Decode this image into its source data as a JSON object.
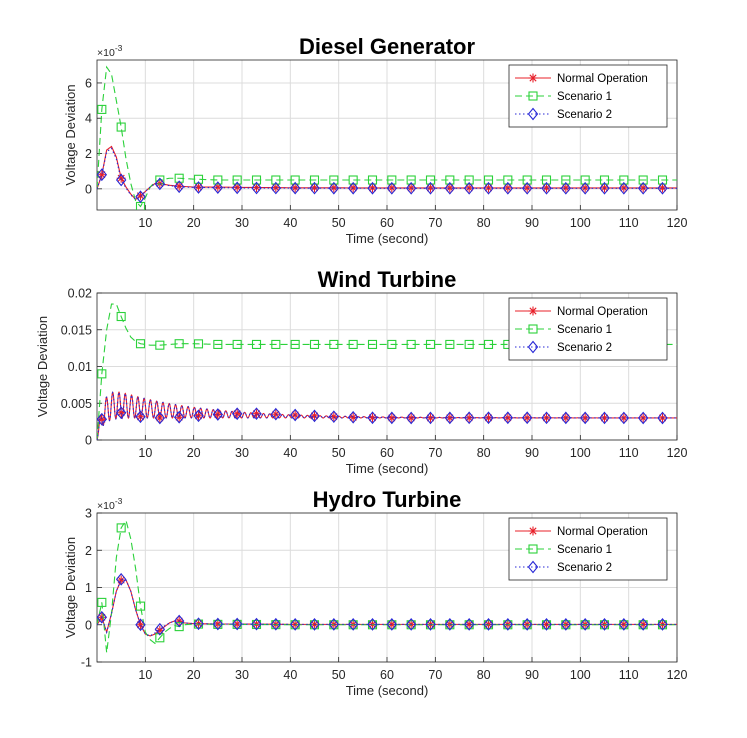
{
  "figure": {
    "background": "#ffffff"
  },
  "chart_data": [
    {
      "type": "line",
      "title": "Diesel Generator",
      "xlabel": "Time (second)",
      "ylabel": "Voltage Deviation",
      "xlim": [
        0,
        120
      ],
      "ylim": [
        -1.2,
        7.3
      ],
      "exponent_label": "×10^-3",
      "exponent_base": "×10",
      "exponent_power": "-3",
      "xticks": [
        10,
        20,
        30,
        40,
        50,
        60,
        70,
        80,
        90,
        100,
        110,
        120
      ],
      "yticks": [
        0,
        2,
        4,
        6
      ],
      "grid": true,
      "legend_position": "top-right",
      "series": [
        {
          "name": "Normal Operation",
          "color": "#e8202a",
          "dash": "solid",
          "marker": "asterisk",
          "x": [
            0,
            1,
            2,
            3,
            4,
            5,
            6,
            7,
            8,
            9,
            10,
            11,
            12,
            13,
            15,
            17,
            20,
            25,
            30,
            40,
            60,
            120
          ],
          "y": [
            0,
            0.8,
            2.2,
            2.4,
            1.8,
            0.6,
            0.1,
            -0.3,
            -0.6,
            -0.4,
            -0.15,
            0.1,
            0.3,
            0.3,
            0.2,
            0.15,
            0.1,
            0.1,
            0.08,
            0.06,
            0.05,
            0.05
          ]
        },
        {
          "name": "Scenario 1",
          "color": "#2bd13a",
          "dash": "dashed",
          "marker": "square",
          "x": [
            0,
            1,
            2,
            3,
            4,
            5,
            6,
            7,
            8,
            9,
            10,
            11,
            12,
            13,
            15,
            17,
            20,
            25,
            30,
            40,
            60,
            120
          ],
          "y": [
            0,
            4.5,
            6.9,
            6.5,
            5.0,
            3.5,
            1.7,
            0.3,
            -0.7,
            -1.0,
            -0.5,
            0.1,
            0.4,
            0.5,
            0.6,
            0.6,
            0.55,
            0.5,
            0.5,
            0.5,
            0.5,
            0.5
          ]
        },
        {
          "name": "Scenario 2",
          "color": "#2727d6",
          "dash": "dotted",
          "marker": "diamond",
          "x": [
            0,
            1,
            2,
            3,
            4,
            5,
            6,
            7,
            8,
            9,
            10,
            11,
            12,
            13,
            15,
            17,
            20,
            25,
            30,
            40,
            60,
            120
          ],
          "y": [
            0,
            0.8,
            2.1,
            2.3,
            1.7,
            0.5,
            0.05,
            -0.35,
            -0.6,
            -0.45,
            -0.15,
            0.1,
            0.28,
            0.28,
            0.18,
            0.12,
            0.08,
            0.07,
            0.05,
            0.04,
            0.03,
            0.03
          ]
        }
      ]
    },
    {
      "type": "line",
      "title": "Wind Turbine",
      "xlabel": "Time (second)",
      "ylabel": "Voltage Deviation",
      "xlim": [
        0,
        120
      ],
      "ylim": [
        0,
        0.02
      ],
      "exponent_label": "",
      "exponent_base": "",
      "exponent_power": "",
      "xticks": [
        10,
        20,
        30,
        40,
        50,
        60,
        70,
        80,
        90,
        100,
        110,
        120
      ],
      "yticks": [
        0,
        0.005,
        0.01,
        0.015,
        0.02
      ],
      "grid": true,
      "legend_position": "top-right",
      "series": [
        {
          "name": "Normal Operation",
          "color": "#e8202a",
          "dash": "solid",
          "marker": "asterisk",
          "oscillation": {
            "baseline": 0.003,
            "amplitude": 0.0048,
            "decay": 0.06,
            "period": 1.3,
            "rise": 1.2
          }
        },
        {
          "name": "Scenario 1",
          "color": "#2bd13a",
          "dash": "dashed",
          "marker": "square",
          "x": [
            0,
            1,
            2,
            3,
            4,
            5,
            6,
            7,
            8,
            9,
            10,
            11,
            12,
            13,
            15,
            17,
            20,
            25,
            30,
            40,
            60,
            120
          ],
          "y": [
            0,
            0.009,
            0.015,
            0.0185,
            0.0185,
            0.0168,
            0.0152,
            0.014,
            0.0134,
            0.0131,
            0.013,
            0.0129,
            0.0129,
            0.0129,
            0.013,
            0.0131,
            0.0131,
            0.013,
            0.013,
            0.013,
            0.013,
            0.013
          ]
        },
        {
          "name": "Scenario 2",
          "color": "#2727d6",
          "dash": "dotted",
          "marker": "diamond",
          "oscillation": {
            "baseline": 0.003,
            "amplitude": 0.0048,
            "decay": 0.06,
            "period": 1.3,
            "rise": 1.2
          }
        }
      ]
    },
    {
      "type": "line",
      "title": "Hydro Turbine",
      "xlabel": "Time (second)",
      "ylabel": "Voltage Deviation",
      "xlim": [
        0,
        120
      ],
      "ylim": [
        -1,
        3
      ],
      "exponent_label": "×10^-3",
      "exponent_base": "×10",
      "exponent_power": "-3",
      "xticks": [
        10,
        20,
        30,
        40,
        50,
        60,
        70,
        80,
        90,
        100,
        110,
        120
      ],
      "yticks": [
        -1,
        0,
        1,
        2,
        3
      ],
      "grid": true,
      "legend_position": "top-right",
      "series": [
        {
          "name": "Normal Operation",
          "color": "#e8202a",
          "dash": "solid",
          "marker": "asterisk",
          "x": [
            0,
            1,
            2,
            3,
            4,
            5,
            6,
            7,
            8,
            9,
            10,
            11,
            12,
            13,
            14,
            15,
            16,
            17,
            18,
            20,
            25,
            30,
            40,
            120
          ],
          "y": [
            0,
            0.2,
            -0.2,
            0.3,
            0.9,
            1.2,
            1.2,
            0.9,
            0.4,
            0.0,
            -0.25,
            -0.3,
            -0.25,
            -0.15,
            -0.05,
            0.05,
            0.1,
            0.1,
            0.05,
            0.03,
            0.02,
            0.02,
            0.01,
            0.01
          ]
        },
        {
          "name": "Scenario 1",
          "color": "#2bd13a",
          "dash": "dashed",
          "marker": "square",
          "x": [
            0,
            1,
            2,
            3,
            4,
            5,
            6,
            7,
            8,
            9,
            10,
            11,
            12,
            13,
            14,
            15,
            16,
            17,
            18,
            20,
            25,
            30,
            40,
            120
          ],
          "y": [
            0,
            0.6,
            -0.75,
            0.3,
            1.8,
            2.6,
            2.8,
            2.3,
            1.5,
            0.5,
            -0.2,
            -0.4,
            -0.5,
            -0.35,
            -0.2,
            -0.1,
            -0.02,
            -0.05,
            0.0,
            0.02,
            0.01,
            0.01,
            0.0,
            0.0
          ]
        },
        {
          "name": "Scenario 2",
          "color": "#2727d6",
          "dash": "dotted",
          "marker": "diamond",
          "x": [
            0,
            1,
            2,
            3,
            4,
            5,
            6,
            7,
            8,
            9,
            10,
            11,
            12,
            13,
            14,
            15,
            16,
            17,
            18,
            20,
            25,
            30,
            40,
            120
          ],
          "y": [
            0,
            0.2,
            -0.2,
            0.3,
            0.9,
            1.22,
            1.2,
            0.9,
            0.4,
            0.0,
            -0.25,
            -0.3,
            -0.22,
            -0.12,
            -0.03,
            0.05,
            0.1,
            0.1,
            0.05,
            0.03,
            0.02,
            0.02,
            0.01,
            0.01
          ]
        }
      ]
    }
  ]
}
